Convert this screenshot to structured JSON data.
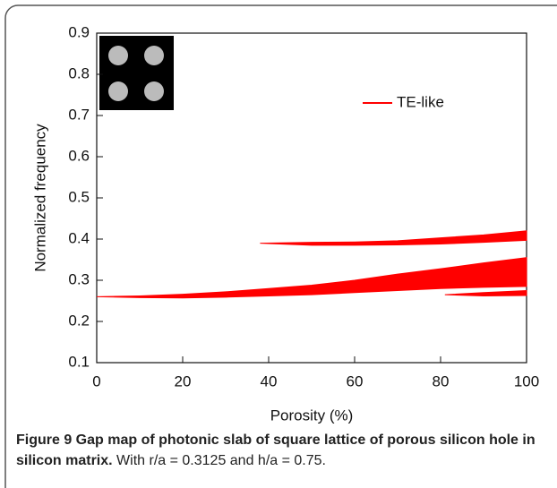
{
  "chart_data": {
    "type": "range_area",
    "name": "TE-like",
    "color": "#ff0000",
    "xlabel": "Porosity (%)",
    "ylabel": "Normalized frequency",
    "xlim": [
      0,
      100
    ],
    "xticks": [
      0,
      20,
      40,
      60,
      80,
      100
    ],
    "ylim": [
      0.1,
      0.9
    ],
    "yticks": [
      0.1,
      0.2,
      0.3,
      0.4,
      0.5,
      0.6,
      0.7,
      0.8,
      0.9
    ],
    "bands": [
      {
        "x": [
          0,
          10,
          20,
          30,
          40,
          50,
          60,
          70,
          80,
          90,
          100
        ],
        "lower": [
          0.26,
          0.258,
          0.257,
          0.259,
          0.262,
          0.265,
          0.27,
          0.275,
          0.28,
          0.283,
          0.285
        ],
        "upper": [
          0.26,
          0.262,
          0.266,
          0.272,
          0.28,
          0.288,
          0.3,
          0.315,
          0.328,
          0.342,
          0.355
        ]
      },
      {
        "x": [
          38,
          50,
          60,
          70,
          80,
          90,
          100
        ],
        "lower": [
          0.39,
          0.385,
          0.385,
          0.386,
          0.388,
          0.392,
          0.397
        ],
        "upper": [
          0.39,
          0.392,
          0.393,
          0.396,
          0.403,
          0.41,
          0.42
        ]
      },
      {
        "x": [
          81,
          90,
          100
        ],
        "lower": [
          0.265,
          0.262,
          0.263
        ],
        "upper": [
          0.265,
          0.27,
          0.275
        ]
      }
    ]
  },
  "caption": {
    "label": "Figure 9 Gap map of photonic slab of square lattice of porous silicon hole in silicon matrix.",
    "text": "With r/a = 0.3125 and h/a = 0.75."
  }
}
